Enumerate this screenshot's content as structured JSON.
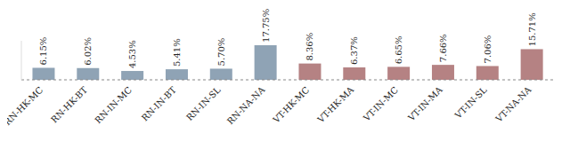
{
  "chart_data": {
    "type": "bar",
    "categories": [
      "RN-HK-MC",
      "RN-HK-BT",
      "RN-IN-MC",
      "RN-IN-BT",
      "RN-IN-SL",
      "RN-NA-NA",
      "VT-HK-MC",
      "VT-HK-MA",
      "VT-IN-MC",
      "VT-IN-MA",
      "VT-IN-SL",
      "VT-NA-NA"
    ],
    "values": [
      6.15,
      6.02,
      4.53,
      5.41,
      5.7,
      17.75,
      8.36,
      6.37,
      6.65,
      7.66,
      7.06,
      15.71
    ],
    "value_labels": [
      "6.15%",
      "6.02%",
      "4.53%",
      "5.41%",
      "5.70%",
      "17.75%",
      "8.36%",
      "6.37%",
      "6.65%",
      "7.66%",
      "7.06%",
      "15.71%"
    ],
    "colors": [
      "#8fa3b5",
      "#8fa3b5",
      "#8fa3b5",
      "#8fa3b5",
      "#8fa3b5",
      "#8fa3b5",
      "#b58283",
      "#b58283",
      "#b58283",
      "#b58283",
      "#b58283",
      "#b58283"
    ],
    "ylim": [
      0,
      20
    ],
    "data_labels": true,
    "tick_labels": "x"
  }
}
